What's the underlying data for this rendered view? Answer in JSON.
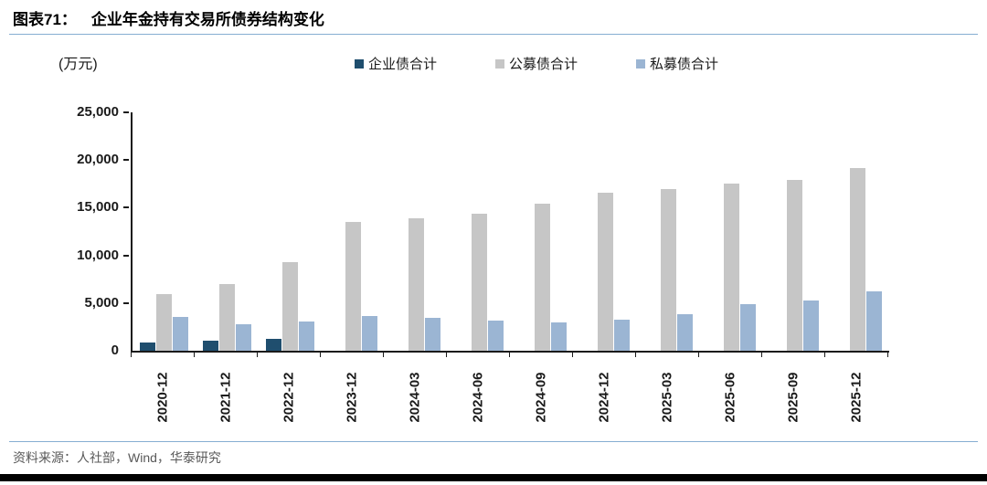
{
  "header": {
    "figure_label": "图表71：",
    "title": "企业年金持有交易所债券结构变化"
  },
  "chart": {
    "unit_label": "(万元)"
  },
  "chart_data": {
    "type": "bar",
    "title": "企业年金持有交易所债券结构变化",
    "unit": "万元",
    "categories": [
      "2020-12",
      "2021-12",
      "2022-12",
      "2023-12",
      "2024-03",
      "2024-06",
      "2024-09",
      "2024-12",
      "2025-03",
      "2025-06",
      "2025-09",
      "2025-12"
    ],
    "series": [
      {
        "name": "企业债合计",
        "color": "#1F4E6E",
        "values": [
          900,
          1100,
          1200,
          0,
          0,
          0,
          0,
          0,
          0,
          0,
          0,
          0
        ]
      },
      {
        "name": "公募债合计",
        "color": "#C6C6C6",
        "values": [
          5900,
          7000,
          9300,
          13500,
          13900,
          14400,
          15400,
          16600,
          17000,
          17500,
          17900,
          19200
        ]
      },
      {
        "name": "私募债合计",
        "color": "#9BB5D3",
        "values": [
          3500,
          2800,
          3100,
          3650,
          3450,
          3200,
          3000,
          3250,
          3850,
          4900,
          5250,
          6200
        ]
      }
    ],
    "ylim": [
      0,
      25000
    ],
    "ytick_step": 5000,
    "ytick_labels": [
      "0",
      "5,000",
      "10,000",
      "15,000",
      "20,000",
      "25,000"
    ],
    "legend_position": "top",
    "grid": false,
    "xlabel": "",
    "ylabel": "万元"
  },
  "footer": {
    "source_text": "资料来源：人社部，Wind，华泰研究"
  },
  "colors": {
    "divider_blue": "#86AED2",
    "axis": "#1a1a1a",
    "source_text": "#595959",
    "bottom_bar": "#000000"
  }
}
